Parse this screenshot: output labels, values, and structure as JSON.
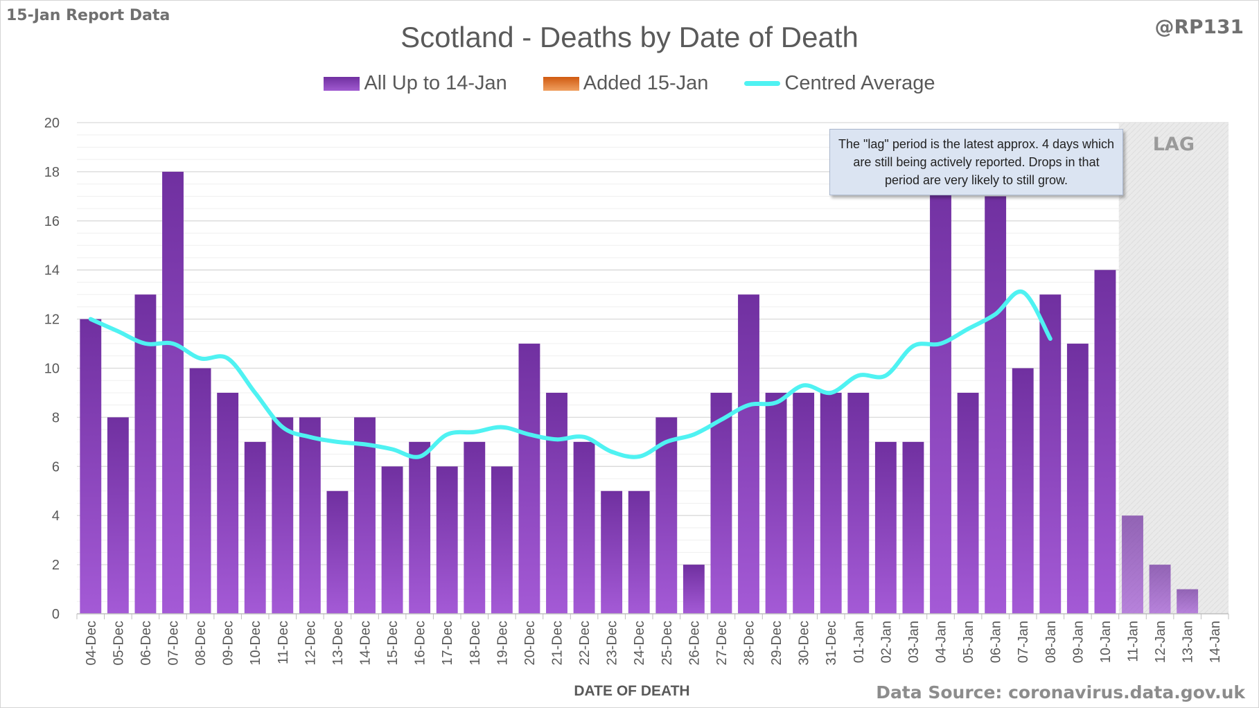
{
  "header": {
    "report_label": "15-Jan Report Data",
    "handle": "@RP131",
    "source": "Data Source: coronavirus.data.gov.uk"
  },
  "annotation": "The \"lag\" period is the latest approx. 4 days which are still being actively reported. Drops in that period are very likely to still grow.",
  "lag_label": "LAG",
  "colors": {
    "bar_main": "#7030a0",
    "bar_light": "#a45ad6",
    "added": "#e06a1e",
    "average": "#4ff2f2",
    "lag_shade": "#e9e9e9"
  },
  "chart_data": {
    "type": "bar",
    "title": "Scotland - Deaths by Date of Death",
    "xlabel": "DATE OF DEATH",
    "ylabel": "",
    "ylim": [
      0,
      20
    ],
    "yticks": [
      0,
      2,
      4,
      6,
      8,
      10,
      12,
      14,
      16,
      18,
      20
    ],
    "grid": true,
    "legend_position": "top",
    "categories": [
      "04-Dec",
      "05-Dec",
      "06-Dec",
      "07-Dec",
      "08-Dec",
      "09-Dec",
      "10-Dec",
      "11-Dec",
      "12-Dec",
      "13-Dec",
      "14-Dec",
      "15-Dec",
      "16-Dec",
      "17-Dec",
      "18-Dec",
      "19-Dec",
      "20-Dec",
      "21-Dec",
      "22-Dec",
      "23-Dec",
      "24-Dec",
      "25-Dec",
      "26-Dec",
      "27-Dec",
      "28-Dec",
      "29-Dec",
      "30-Dec",
      "31-Dec",
      "01-Jan",
      "02-Jan",
      "03-Jan",
      "04-Jan",
      "05-Jan",
      "06-Jan",
      "07-Jan",
      "08-Jan",
      "09-Jan",
      "10-Jan",
      "11-Jan",
      "12-Jan",
      "13-Jan",
      "14-Jan"
    ],
    "lag_categories": [
      "11-Jan",
      "12-Jan",
      "13-Jan",
      "14-Jan"
    ],
    "series": [
      {
        "name": "All Up to 14-Jan",
        "type": "bar",
        "values": [
          12,
          8,
          13,
          18,
          10,
          9,
          7,
          8,
          8,
          5,
          8,
          6,
          7,
          6,
          7,
          6,
          11,
          9,
          7,
          5,
          5,
          8,
          2,
          9,
          13,
          9,
          9,
          9,
          9,
          7,
          7,
          18,
          9,
          17,
          10,
          13,
          11,
          14,
          4,
          2,
          1,
          0
        ]
      },
      {
        "name": "Added 15-Jan",
        "type": "bar",
        "values": [
          0,
          0,
          0,
          0,
          0,
          0,
          0,
          0,
          0,
          0,
          0,
          0,
          0,
          0,
          0,
          0,
          0,
          0,
          0,
          0,
          0,
          0,
          0,
          0,
          0,
          0,
          0,
          0,
          0,
          0,
          0,
          0,
          0,
          0,
          0,
          0,
          0,
          0,
          0,
          0,
          0,
          0
        ]
      },
      {
        "name": "Centred Average",
        "type": "line",
        "values": [
          12,
          11.5,
          11,
          11,
          10.4,
          10.4,
          9,
          7.6,
          7.2,
          7,
          6.9,
          6.7,
          6.4,
          7.3,
          7.4,
          7.6,
          7.3,
          7.1,
          7.2,
          6.6,
          6.4,
          7,
          7.3,
          7.9,
          8.5,
          8.6,
          9.3,
          9,
          9.7,
          9.7,
          10.9,
          11,
          11.6,
          12.2,
          13.1,
          11.2,
          null,
          null,
          null,
          null,
          null,
          null
        ]
      }
    ]
  }
}
